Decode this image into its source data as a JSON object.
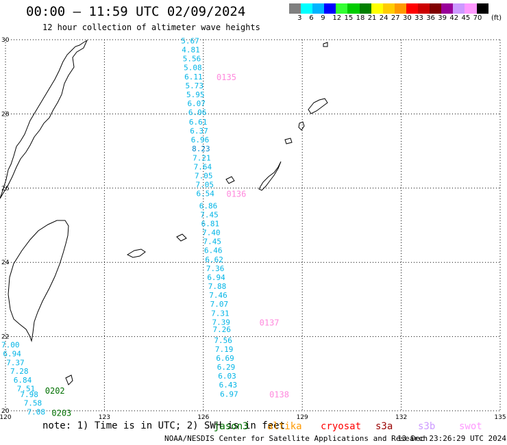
{
  "header": {
    "title": "00:00 – 11:59 UTC 02/09/2024",
    "subtitle": "12 hour collection of altimeter wave heights"
  },
  "colorbar": {
    "colors": [
      "#808080",
      "#00ffff",
      "#00b4ff",
      "#0000ff",
      "#33ff33",
      "#00cc00",
      "#008000",
      "#ffff00",
      "#ffcc00",
      "#ff9900",
      "#ff0000",
      "#cc0000",
      "#800000",
      "#990099",
      "#cc99ff",
      "#ff99ff",
      "#000000"
    ],
    "labels": [
      "3",
      "6",
      "9",
      "12",
      "15",
      "18",
      "21",
      "24",
      "27",
      "30",
      "33",
      "36",
      "39",
      "42",
      "45",
      "70",
      "(ft)"
    ]
  },
  "footer": {
    "note": "note: 1) Time is in UTC; 2) SWH is in feet",
    "credit": "NOAA/NESDIS Center for Satellite Applications and Research",
    "stamp": "13 Dec 23:26:29 UTC 2024"
  },
  "legend": [
    {
      "label": "jason3",
      "color": "#007000"
    },
    {
      "label": "altika",
      "color": "#ff9900"
    },
    {
      "label": "cryosat",
      "color": "#ff0000"
    },
    {
      "label": "s3a",
      "color": "#990000"
    },
    {
      "label": "s3b",
      "color": "#cc99ff"
    },
    {
      "label": "swot",
      "color": "#ff99ff"
    }
  ],
  "chart_data": {
    "type": "scatter",
    "xlim": [
      120,
      135
    ],
    "ylim": [
      20,
      30
    ],
    "xticks": [
      "120",
      "123",
      "126",
      "129",
      "132",
      "135"
    ],
    "yticks": [
      "20",
      "22",
      "24",
      "26",
      "28",
      "30"
    ],
    "grid": true,
    "track_colors": {
      "swot": "#ff88dd",
      "jason3": "#007000"
    },
    "value_colors": {
      "lt8": "#00b4e6",
      "ge8": "#0088cc"
    },
    "series": [
      {
        "name": "swot",
        "points": [
          {
            "lon": 125.6,
            "lat": 29.97,
            "v": "5.67"
          },
          {
            "lon": 125.62,
            "lat": 29.73,
            "v": "4.81"
          },
          {
            "lon": 125.65,
            "lat": 29.49,
            "v": "5.56"
          },
          {
            "lon": 125.68,
            "lat": 29.25,
            "v": "5.08"
          },
          {
            "lon": 125.7,
            "lat": 29.0,
            "v": "6.11"
          },
          {
            "lon": 125.73,
            "lat": 28.76,
            "v": "5.73"
          },
          {
            "lon": 125.76,
            "lat": 28.52,
            "v": "5.95"
          },
          {
            "lon": 125.79,
            "lat": 28.28,
            "v": "6.07"
          },
          {
            "lon": 125.82,
            "lat": 28.04,
            "v": "6.06"
          },
          {
            "lon": 125.84,
            "lat": 27.79,
            "v": "6.61"
          },
          {
            "lon": 125.87,
            "lat": 27.55,
            "v": "6.37"
          },
          {
            "lon": 125.9,
            "lat": 27.31,
            "v": "6.96"
          },
          {
            "lon": 125.93,
            "lat": 27.07,
            "v": "8.23"
          },
          {
            "lon": 125.95,
            "lat": 26.82,
            "v": "7.21"
          },
          {
            "lon": 125.98,
            "lat": 26.58,
            "v": "7.64"
          },
          {
            "lon": 126.01,
            "lat": 26.34,
            "v": "7.05"
          },
          {
            "lon": 126.04,
            "lat": 26.1,
            "v": "7.05"
          },
          {
            "lon": 126.06,
            "lat": 25.86,
            "v": "6.54"
          },
          {
            "lon": 126.15,
            "lat": 25.53,
            "v": "6.86"
          },
          {
            "lon": 126.18,
            "lat": 25.29,
            "v": "7.45"
          },
          {
            "lon": 126.21,
            "lat": 25.05,
            "v": "6.81"
          },
          {
            "lon": 126.24,
            "lat": 24.81,
            "v": "7.40"
          },
          {
            "lon": 126.27,
            "lat": 24.57,
            "v": "7.45"
          },
          {
            "lon": 126.3,
            "lat": 24.33,
            "v": "6.46"
          },
          {
            "lon": 126.33,
            "lat": 24.08,
            "v": "6.62"
          },
          {
            "lon": 126.36,
            "lat": 23.84,
            "v": "7.36"
          },
          {
            "lon": 126.39,
            "lat": 23.6,
            "v": "6.94"
          },
          {
            "lon": 126.42,
            "lat": 23.36,
            "v": "7.88"
          },
          {
            "lon": 126.45,
            "lat": 23.12,
            "v": "7.46"
          },
          {
            "lon": 126.48,
            "lat": 22.88,
            "v": "7.07"
          },
          {
            "lon": 126.51,
            "lat": 22.63,
            "v": "7.31"
          },
          {
            "lon": 126.54,
            "lat": 22.39,
            "v": "7.39"
          },
          {
            "lon": 126.56,
            "lat": 22.2,
            "v": "7.26"
          },
          {
            "lon": 126.6,
            "lat": 21.9,
            "v": "7.56"
          },
          {
            "lon": 126.63,
            "lat": 21.66,
            "v": "7.19"
          },
          {
            "lon": 126.66,
            "lat": 21.42,
            "v": "6.69"
          },
          {
            "lon": 126.69,
            "lat": 21.18,
            "v": "6.29"
          },
          {
            "lon": 126.72,
            "lat": 20.94,
            "v": "6.03"
          },
          {
            "lon": 126.75,
            "lat": 20.7,
            "v": "6.43"
          },
          {
            "lon": 126.78,
            "lat": 20.45,
            "v": "6.97"
          }
        ],
        "time_labels": [
          {
            "lon": 126.4,
            "lat": 29.0,
            "t": "0135"
          },
          {
            "lon": 126.7,
            "lat": 25.86,
            "t": "0136"
          },
          {
            "lon": 127.7,
            "lat": 22.39,
            "t": "0137"
          },
          {
            "lon": 128.0,
            "lat": 20.45,
            "t": "0138"
          }
        ]
      },
      {
        "name": "jason3",
        "points": [
          {
            "lon": 120.15,
            "lat": 21.78,
            "v": "7.00"
          },
          {
            "lon": 120.2,
            "lat": 21.54,
            "v": "6.94"
          },
          {
            "lon": 120.3,
            "lat": 21.3,
            "v": "7.37"
          },
          {
            "lon": 120.42,
            "lat": 21.07,
            "v": "7.28"
          },
          {
            "lon": 120.52,
            "lat": 20.83,
            "v": "6.84"
          },
          {
            "lon": 120.62,
            "lat": 20.6,
            "v": "7.51"
          },
          {
            "lon": 120.72,
            "lat": 20.44,
            "v": "7.98"
          },
          {
            "lon": 120.83,
            "lat": 20.21,
            "v": "7.58"
          },
          {
            "lon": 120.93,
            "lat": 19.97,
            "v": "7.08"
          }
        ],
        "time_labels": [
          {
            "lon": 121.2,
            "lat": 20.55,
            "t": "0202"
          },
          {
            "lon": 121.4,
            "lat": 19.95,
            "t": "0203"
          }
        ]
      }
    ]
  }
}
